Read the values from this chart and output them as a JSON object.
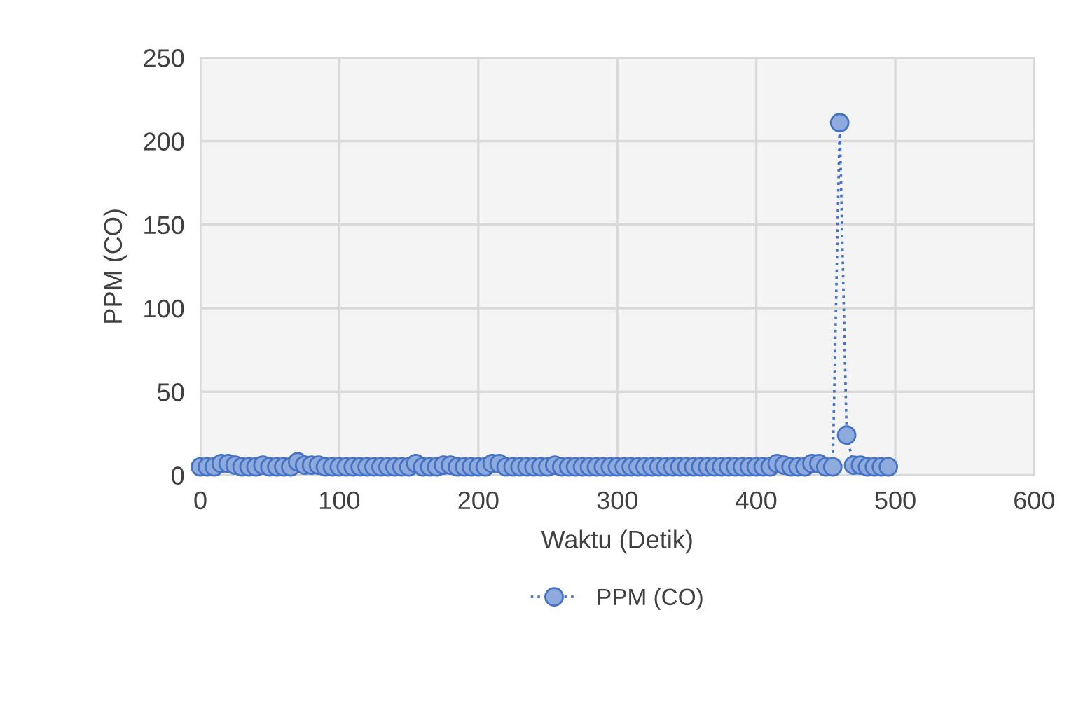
{
  "chart_data": {
    "type": "line",
    "xlabel": "Waktu (Detik)",
    "ylabel": "PPM (CO)",
    "x": [
      0,
      5,
      10,
      15,
      20,
      25,
      30,
      35,
      40,
      45,
      50,
      55,
      60,
      65,
      70,
      75,
      80,
      85,
      90,
      95,
      100,
      105,
      110,
      115,
      120,
      125,
      130,
      135,
      140,
      145,
      150,
      155,
      160,
      165,
      170,
      175,
      180,
      185,
      190,
      195,
      200,
      205,
      210,
      215,
      220,
      225,
      230,
      235,
      240,
      245,
      250,
      255,
      260,
      265,
      270,
      275,
      280,
      285,
      290,
      295,
      300,
      305,
      310,
      315,
      320,
      325,
      330,
      335,
      340,
      345,
      350,
      355,
      360,
      365,
      370,
      375,
      380,
      385,
      390,
      395,
      400,
      405,
      410,
      415,
      420,
      425,
      430,
      435,
      440,
      445,
      450,
      455,
      460,
      465,
      470,
      475,
      480,
      485,
      490,
      495
    ],
    "series": [
      {
        "name": "PPM (CO)",
        "color": "#4472c4",
        "values": [
          5,
          5,
          5,
          7,
          7,
          6,
          5,
          5,
          5,
          6,
          5,
          5,
          5,
          5,
          8,
          6,
          6,
          6,
          5,
          5,
          5,
          5,
          5,
          5,
          5,
          5,
          5,
          5,
          5,
          5,
          5,
          7,
          5,
          5,
          5,
          6,
          6,
          5,
          5,
          5,
          5,
          5,
          7,
          7,
          5,
          5,
          5,
          5,
          5,
          5,
          5,
          6,
          5,
          5,
          5,
          5,
          5,
          5,
          5,
          5,
          5,
          5,
          5,
          5,
          5,
          5,
          5,
          5,
          5,
          5,
          5,
          5,
          5,
          5,
          5,
          5,
          5,
          5,
          5,
          5,
          5,
          5,
          5,
          7,
          6,
          5,
          5,
          5,
          7,
          7,
          5,
          5,
          211,
          24,
          6,
          6,
          5,
          5,
          5,
          5
        ]
      }
    ],
    "xlim": [
      0,
      600
    ],
    "xticks": [
      0,
      100,
      200,
      300,
      400,
      500,
      600
    ],
    "ylim": [
      0,
      250
    ],
    "yticks": [
      0,
      50,
      100,
      150,
      200,
      250
    ],
    "grid": true,
    "legend": "bottom",
    "marker": "circle",
    "line_style": "dotted"
  }
}
